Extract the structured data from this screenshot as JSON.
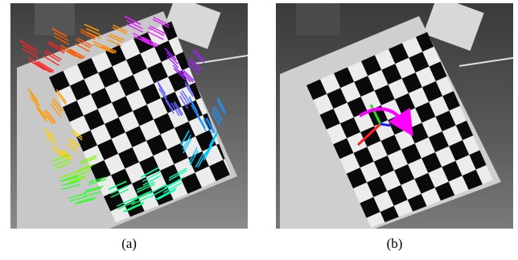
{
  "figure": {
    "panels": [
      {
        "caption": "(a)",
        "content": "photo-checkerboard-with-rainbow-flow-arrows",
        "colors": {
          "board_white": "#e8e8e8",
          "board_black": "#0a0a0a",
          "background": "#5a5a5a"
        }
      },
      {
        "caption": "(b)",
        "content": "photo-checkerboard-with-pose-axes",
        "colors": {
          "x_axis": "#ff2020",
          "y_axis": "#20e020",
          "z_axis": "#2020ff",
          "rotation_arrow": "#ff00ff"
        }
      }
    ]
  }
}
